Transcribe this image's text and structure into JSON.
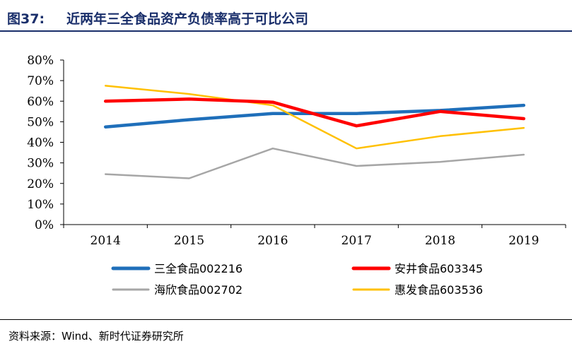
{
  "header": {
    "figure_label": "图37:",
    "title": "近两年三全食品资产负债率高于可比公司"
  },
  "footer": {
    "source": "资料来源：Wind、新时代证券研究所"
  },
  "chart_data": {
    "type": "line",
    "x": [
      "2014",
      "2015",
      "2016",
      "2017",
      "2018",
      "2019"
    ],
    "ylim": [
      0,
      80
    ],
    "yticks": [
      "0%",
      "10%",
      "20%",
      "30%",
      "40%",
      "50%",
      "60%",
      "70%",
      "80%"
    ],
    "grid": false,
    "legend_position": "bottom",
    "series": [
      {
        "name": "三全食品002216",
        "color": "#1f6fba",
        "values": [
          47.5,
          51,
          54,
          54,
          55.5,
          58
        ]
      },
      {
        "name": "安井食品603345",
        "color": "#ff0000",
        "values": [
          60,
          61,
          59.5,
          48,
          55,
          51.5
        ]
      },
      {
        "name": "海欣食品002702",
        "color": "#a6a6a6",
        "values": [
          24.5,
          22.5,
          37,
          28.5,
          30.5,
          34
        ]
      },
      {
        "name": "惠发食品603536",
        "color": "#ffc000",
        "values": [
          67.5,
          63.5,
          58,
          37,
          43,
          47
        ]
      }
    ]
  }
}
